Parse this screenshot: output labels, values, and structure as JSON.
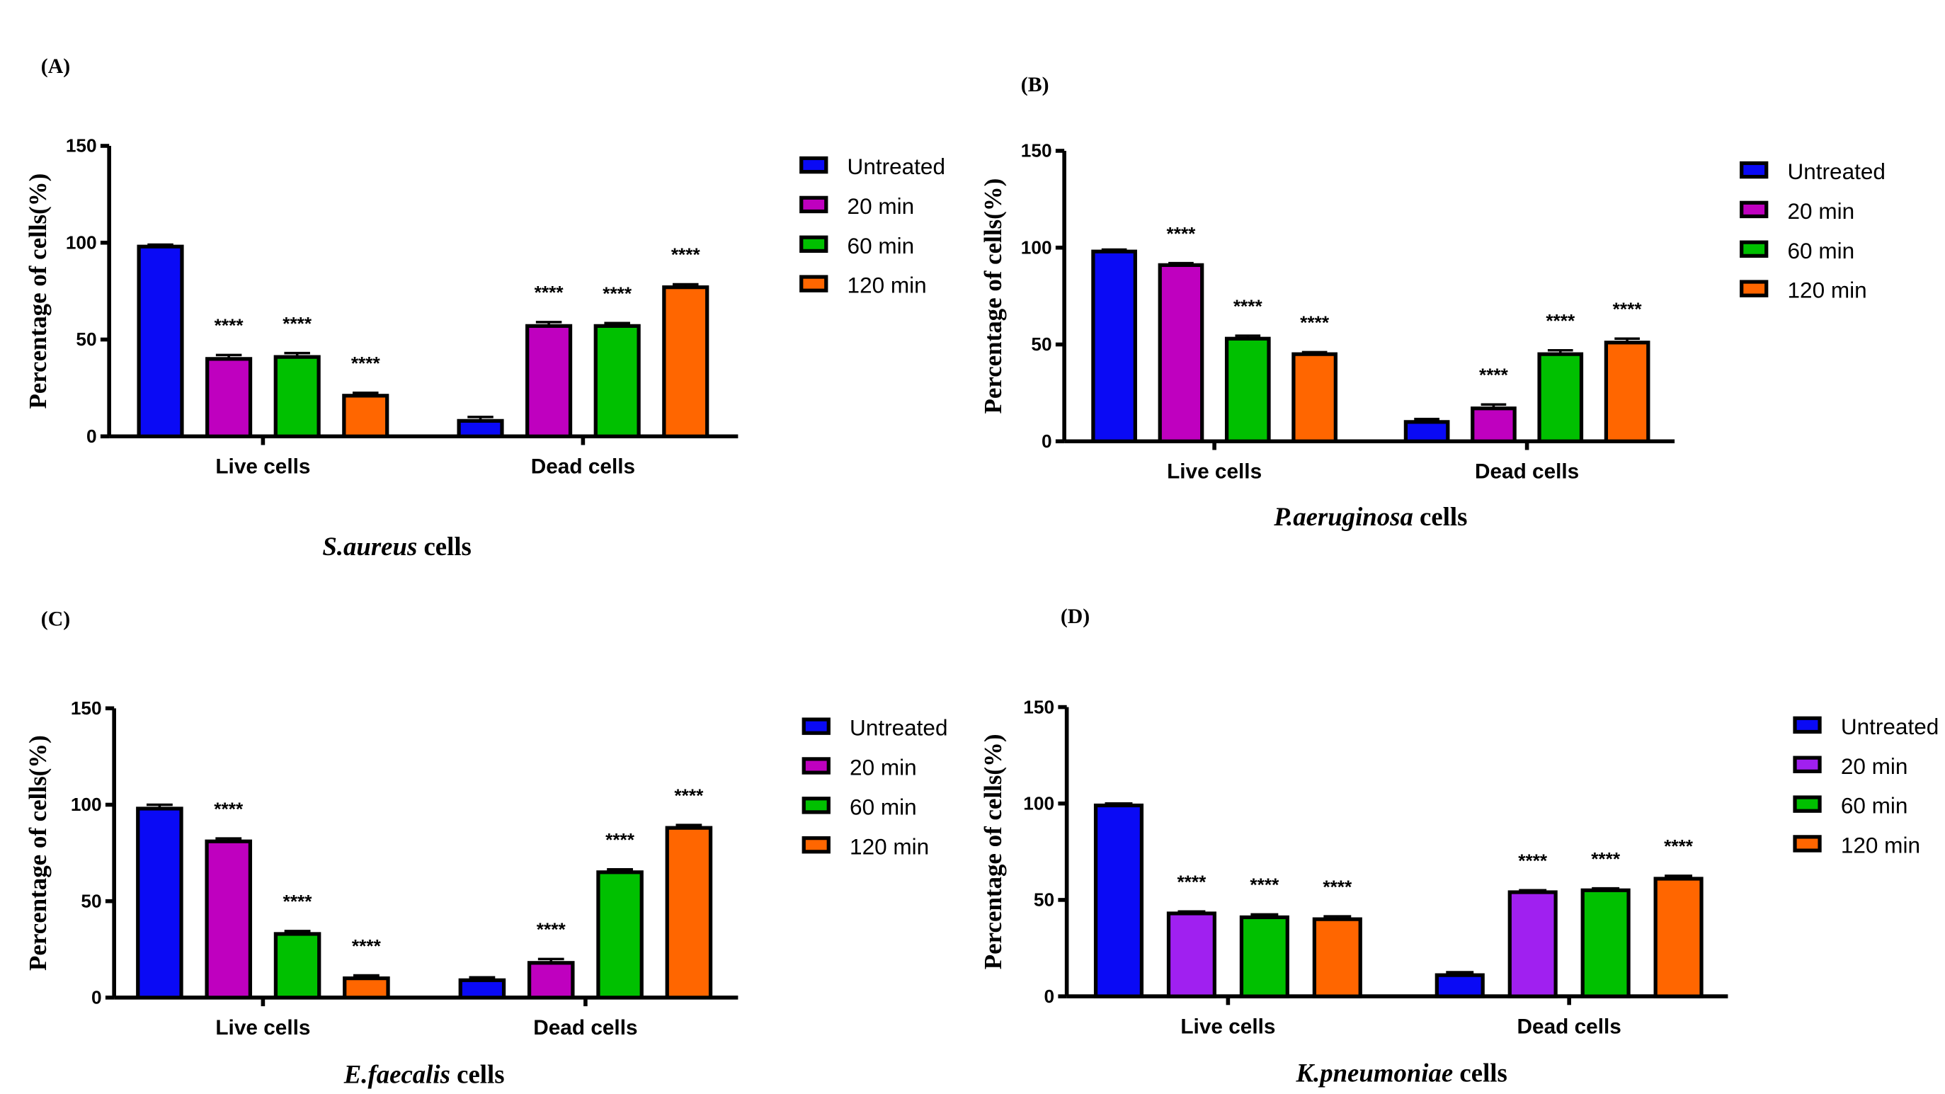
{
  "chart_data": [
    {
      "type": "bar",
      "panel_label": "(A)",
      "subtitle_italic": "S.aureus",
      "subtitle_rest": " cells",
      "ylabel": "Percentage of cells(%)",
      "ylim": [
        0,
        150
      ],
      "yticks": [
        "0",
        "50",
        "100",
        "150"
      ],
      "categories": [
        "Live cells",
        "Dead cells"
      ],
      "series": [
        {
          "name": "Untreated",
          "color": "#0a0af5",
          "values": [
            98,
            8
          ],
          "errors": [
            1,
            2
          ],
          "sig": [
            "",
            ""
          ]
        },
        {
          "name": "20 min",
          "color": "#bf00bf",
          "values": [
            40,
            57
          ],
          "errors": [
            2,
            2
          ],
          "sig": [
            "****",
            "****"
          ]
        },
        {
          "name": "60 min",
          "color": "#00c000",
          "values": [
            41,
            57
          ],
          "errors": [
            2,
            1.5
          ],
          "sig": [
            "****",
            "****"
          ]
        },
        {
          "name": "120 min",
          "color": "#ff6600",
          "values": [
            21,
            77
          ],
          "errors": [
            1.5,
            1.5
          ],
          "sig": [
            "****",
            "****"
          ]
        }
      ]
    },
    {
      "type": "bar",
      "panel_label": "(B)",
      "subtitle_italic": "P.aeruginosa",
      "subtitle_rest": " cells",
      "ylabel": "Percentage of cells(%)",
      "ylim": [
        0,
        150
      ],
      "yticks": [
        "0",
        "50",
        "100",
        "150"
      ],
      "categories": [
        "Live cells",
        "Dead cells"
      ],
      "series": [
        {
          "name": "Untreated",
          "color": "#0a0af5",
          "values": [
            98,
            10
          ],
          "errors": [
            1,
            1.5
          ],
          "sig": [
            "",
            ""
          ]
        },
        {
          "name": "20 min",
          "color": "#bf00bf",
          "values": [
            91,
            17
          ],
          "errors": [
            1,
            2
          ],
          "sig": [
            "****",
            "****"
          ]
        },
        {
          "name": "60 min",
          "color": "#00c000",
          "values": [
            53,
            45
          ],
          "errors": [
            1.5,
            2
          ],
          "sig": [
            "****",
            "****"
          ]
        },
        {
          "name": "120 min",
          "color": "#ff6600",
          "values": [
            45,
            51
          ],
          "errors": [
            1,
            2
          ],
          "sig": [
            "****",
            "****"
          ]
        }
      ]
    },
    {
      "type": "bar",
      "panel_label": "(C)",
      "subtitle_italic": "E.faecalis",
      "subtitle_rest": " cells",
      "ylabel": "Percentage of cells(%)",
      "ylim": [
        0,
        150
      ],
      "yticks": [
        "0",
        "50",
        "100",
        "150"
      ],
      "categories": [
        "Live cells",
        "Dead cells"
      ],
      "series": [
        {
          "name": "Untreated",
          "color": "#0a0af5",
          "values": [
            98,
            9
          ],
          "errors": [
            2,
            1.5
          ],
          "sig": [
            "",
            ""
          ]
        },
        {
          "name": "20 min",
          "color": "#bf00bf",
          "values": [
            81,
            18
          ],
          "errors": [
            1.5,
            2
          ],
          "sig": [
            "****",
            "****"
          ]
        },
        {
          "name": "60 min",
          "color": "#00c000",
          "values": [
            33,
            65
          ],
          "errors": [
            1.5,
            1.5
          ],
          "sig": [
            "****",
            "****"
          ]
        },
        {
          "name": "120 min",
          "color": "#ff6600",
          "values": [
            10,
            88
          ],
          "errors": [
            1.5,
            1.5
          ],
          "sig": [
            "****",
            "****"
          ]
        }
      ]
    },
    {
      "type": "bar",
      "panel_label": "(D)",
      "subtitle_italic": "K.pneumoniae",
      "subtitle_rest": " cells",
      "ylabel": "Percentage of cells(%)",
      "ylim": [
        0,
        150
      ],
      "yticks": [
        "0",
        "50",
        "100",
        "150"
      ],
      "categories": [
        "Live cells",
        "Dead cells"
      ],
      "series": [
        {
          "name": "Untreated",
          "color": "#0a0af5",
          "values": [
            99,
            11
          ],
          "errors": [
            1,
            1.5
          ],
          "sig": [
            "",
            ""
          ]
        },
        {
          "name": "20 min",
          "color": "#a020f0",
          "values": [
            43,
            54
          ],
          "errors": [
            1,
            1
          ],
          "sig": [
            "****",
            "****"
          ]
        },
        {
          "name": "60 min",
          "color": "#00c000",
          "values": [
            41,
            55
          ],
          "errors": [
            1.5,
            1
          ],
          "sig": [
            "****",
            "****"
          ]
        },
        {
          "name": "120 min",
          "color": "#ff6600",
          "values": [
            40,
            61
          ],
          "errors": [
            1.5,
            1.5
          ],
          "sig": [
            "****",
            "****"
          ]
        }
      ]
    }
  ]
}
